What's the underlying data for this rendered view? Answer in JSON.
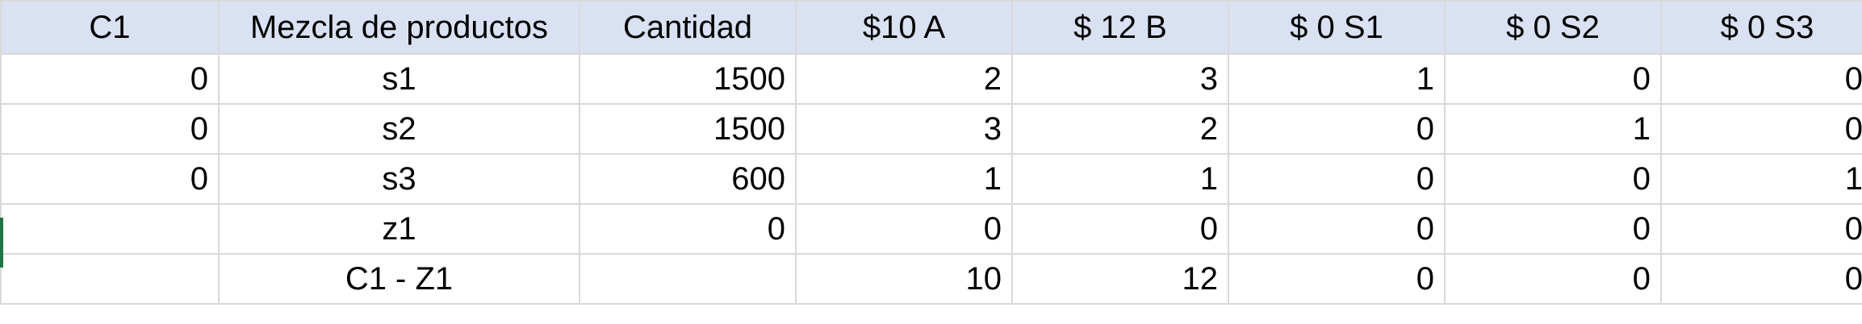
{
  "colors": {
    "header_fill": "#d9e1f2",
    "gridline": "#d9d9d9",
    "active_cell_marker": "#217346"
  },
  "header": [
    "C1",
    "Mezcla de productos",
    "Cantidad",
    "$10 A",
    "$ 12 B",
    "$ 0 S1",
    "$ 0 S2",
    "$ 0 S3"
  ],
  "rows": [
    [
      "0",
      "s1",
      "1500",
      "2",
      "3",
      "1",
      "0",
      "0"
    ],
    [
      "0",
      "s2",
      "1500",
      "3",
      "2",
      "0",
      "1",
      "0"
    ],
    [
      "0",
      "s3",
      "600",
      "1",
      "1",
      "0",
      "0",
      "1"
    ],
    [
      "",
      "z1",
      "0",
      "0",
      "0",
      "0",
      "0",
      "0"
    ],
    [
      "",
      "C1 - Z1",
      "",
      "10",
      "12",
      "0",
      "0",
      "0"
    ]
  ]
}
